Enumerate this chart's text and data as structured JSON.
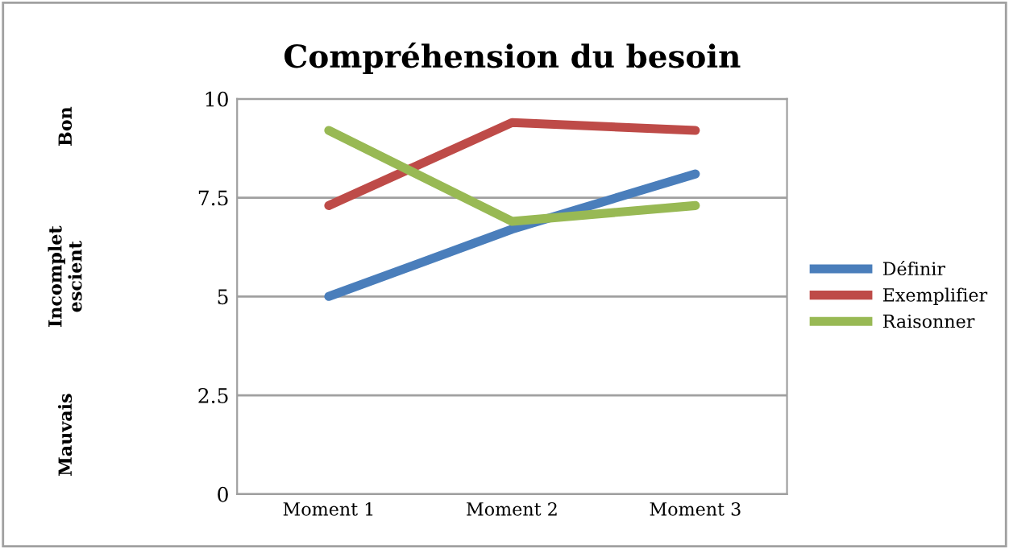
{
  "chart_data": {
    "type": "line",
    "title": "Compréhension du besoin",
    "categories": [
      "Moment 1",
      "Moment 2",
      "Moment 3"
    ],
    "series": [
      {
        "name": "Définir",
        "color": "#4a7ebb",
        "values": [
          5,
          6.7,
          8.1
        ]
      },
      {
        "name": "Exemplifier",
        "color": "#be4b48",
        "values": [
          7.3,
          9.4,
          9.2
        ]
      },
      {
        "name": "Raisonner",
        "color": "#98b954",
        "values": [
          9.2,
          6.9,
          7.3
        ]
      }
    ],
    "ylim": [
      0,
      10
    ],
    "yticks": [
      0,
      2.5,
      5,
      7.5,
      10
    ],
    "grid": "y",
    "legend": "right",
    "marker": "none",
    "line_style": "solid",
    "annotations": [
      "Bon",
      "Incomplet\nescient",
      "Mauvais"
    ]
  }
}
